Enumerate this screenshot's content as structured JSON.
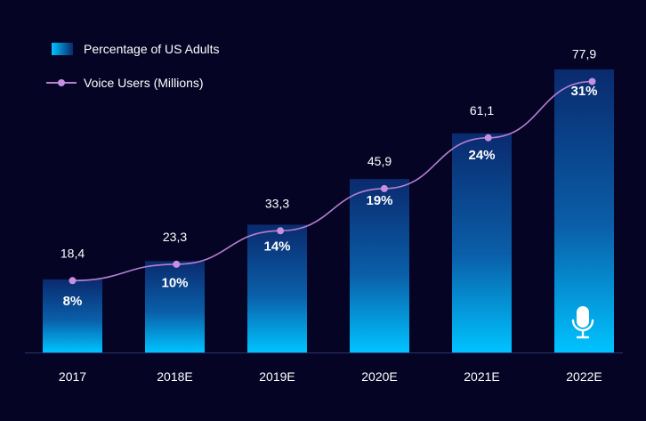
{
  "chart_data": {
    "type": "bar",
    "categories": [
      "2017",
      "2018E",
      "2019E",
      "2020E",
      "2021E",
      "2022E"
    ],
    "series": [
      {
        "name": "Percentage of US Adults",
        "type": "bar",
        "values": [
          8,
          10,
          14,
          19,
          24,
          31
        ],
        "labels": [
          "8%",
          "10%",
          "14%",
          "19%",
          "24%",
          "31%"
        ]
      },
      {
        "name": "Voice Users (Millions)",
        "type": "line",
        "values": [
          18.4,
          23.3,
          33.3,
          45.9,
          61.1,
          77.9
        ],
        "labels": [
          "18,4",
          "23,3",
          "33,3",
          "45,9",
          "61,1",
          "77,9"
        ]
      }
    ],
    "legend_position": "top-left",
    "grid": false
  },
  "colors": {
    "background": "#050425",
    "bar_top": "#0a2a6e",
    "bar_bottom": "#00c3ff",
    "line": "#b77fd0",
    "marker": "#c78fe0",
    "text": "#ffffff",
    "axis": "#2a3570"
  },
  "icons": {
    "last_bar_icon": "microphone-icon"
  }
}
